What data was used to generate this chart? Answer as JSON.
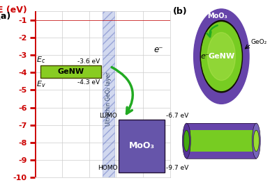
{
  "fig_width": 3.87,
  "fig_height": 2.66,
  "dpi": 100,
  "panel_a_label": "(a)",
  "panel_b_label": "(b)",
  "ylabel": "E (eV)",
  "ymin": -10.0,
  "ymax": -0.5,
  "yticks": [
    -1,
    -2,
    -3,
    -4,
    -5,
    -6,
    -7,
    -8,
    -9,
    -10
  ],
  "axis_color": "#cc0000",
  "grid_color": "#cccccc",
  "genw_ec": -3.6,
  "genw_ev": -4.3,
  "genw_color": "#88cc22",
  "genw_label": "GeNW",
  "moo3_lumo": -6.7,
  "moo3_homo": -9.7,
  "moo3_color": "#6655aa",
  "moo3_label": "MoO₃",
  "geo2_label": "Ultrathin GeO₂ layer",
  "geo2_color": "#99aadd",
  "geo2_hatch_color": "#5566bb",
  "ec_label": "E_c",
  "ev_label": "E_v",
  "ec_value_label": "-3.6 eV",
  "ev_value_label": "-4.3 eV",
  "lumo_value_label": "-6.7 eV",
  "homo_value_label": "-9.7 eV",
  "lumo_label": "LUMO",
  "homo_label": "HOMO",
  "eminus_label": "e⁻",
  "arrow_green": "#22aa22",
  "purple_outer": "#6644aa",
  "purple_dark": "#553399",
  "purple_mid": "#7766bb",
  "green_inner": "#77cc22",
  "green_dark": "#44aa11",
  "geo2_ring_color": "#223300"
}
